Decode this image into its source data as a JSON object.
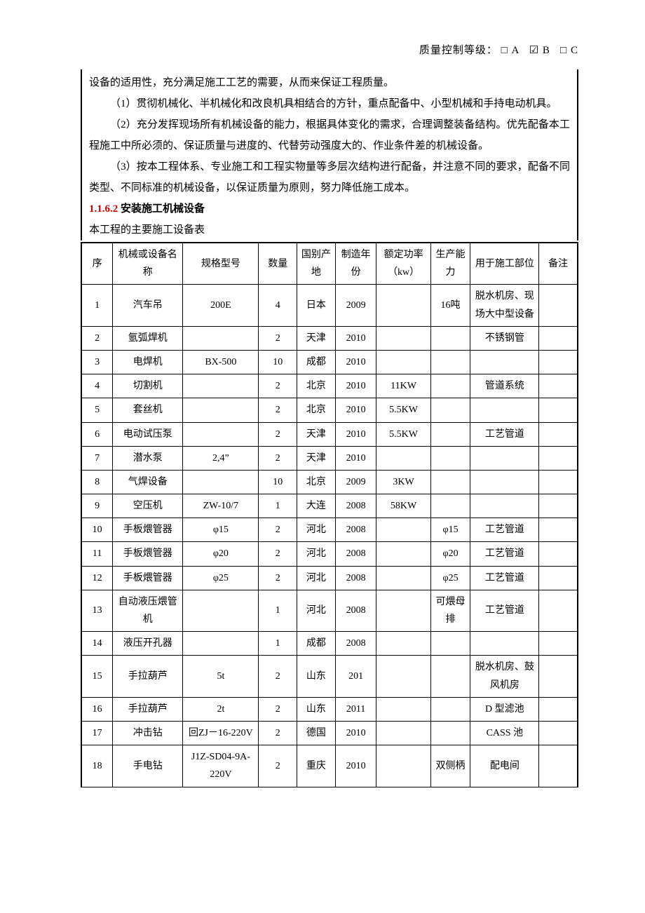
{
  "header": {
    "label": "质量控制等级：",
    "optA": "A",
    "optB": "B",
    "optC": "C",
    "unchecked": "□",
    "checked": "☑"
  },
  "text": {
    "p0": "设备的适用性，充分满足施工工艺的需要，从而来保证工程质量。",
    "p1": "（1）贯彻机械化、半机械化和改良机具相结合的方针，重点配备中、小型机械和手持电动机具。",
    "p2": "（2）充分发挥现场所有机械设备的能力，根据具体变化的需求，合理调整装备结构。优先配备本工程施工中所必须的、保证质量与进度的、代替劳动强度大的、作业条件差的机械设备。",
    "p3": "（3）按本工程体系、专业施工和工程实物量等多层次结构进行配备，并注意不同的要求，配备不同类型、不同标准的机械设备，以保证质量为原则，努力降低施工成本。",
    "sectionNum": "1.1.6.2",
    "sectionTitle": " 安装施工机械设备",
    "tableCaption": "本工程的主要施工设备表"
  },
  "table": {
    "headers": {
      "seq": "序",
      "name": "机械或设备名称",
      "spec": "规格型号",
      "qty": "数量",
      "origin": "国别产地",
      "year": "制造年份",
      "power": "额定功率（kw）",
      "cap": "生产能力",
      "use": "用于施工部位",
      "remark": "备注"
    },
    "rows": [
      {
        "seq": "1",
        "name": "汽车吊",
        "spec": "200E",
        "qty": "4",
        "origin": "日本",
        "year": "2009",
        "power": "",
        "cap": "16吨",
        "use": "脱水机房、现场大中型设备",
        "remark": ""
      },
      {
        "seq": "2",
        "name": "氩弧焊机",
        "spec": "",
        "qty": "2",
        "origin": "天津",
        "year": "2010",
        "power": "",
        "cap": "",
        "use": "不锈钢管",
        "remark": ""
      },
      {
        "seq": "3",
        "name": "电焊机",
        "spec": "BX-500",
        "qty": "10",
        "origin": "成都",
        "year": "2010",
        "power": "",
        "cap": "",
        "use": "",
        "remark": ""
      },
      {
        "seq": "4",
        "name": "切割机",
        "spec": "",
        "qty": "2",
        "origin": "北京",
        "year": "2010",
        "power": "11KW",
        "cap": "",
        "use": "管道系统",
        "remark": ""
      },
      {
        "seq": "5",
        "name": "套丝机",
        "spec": "",
        "qty": "2",
        "origin": "北京",
        "year": "2010",
        "power": "5.5KW",
        "cap": "",
        "use": "",
        "remark": ""
      },
      {
        "seq": "6",
        "name": "电动试压泵",
        "spec": "",
        "qty": "2",
        "origin": "天津",
        "year": "2010",
        "power": "5.5KW",
        "cap": "",
        "use": "工艺管道",
        "remark": ""
      },
      {
        "seq": "7",
        "name": "潜水泵",
        "spec": "2,4”",
        "qty": "2",
        "origin": "天津",
        "year": "2010",
        "power": "",
        "cap": "",
        "use": "",
        "remark": ""
      },
      {
        "seq": "8",
        "name": "气焊设备",
        "spec": "",
        "qty": "10",
        "origin": "北京",
        "year": "2009",
        "power": "3KW",
        "cap": "",
        "use": "",
        "remark": ""
      },
      {
        "seq": "9",
        "name": "空压机",
        "spec": "ZW-10/7",
        "qty": "1",
        "origin": "大连",
        "year": "2008",
        "power": "58KW",
        "cap": "",
        "use": "",
        "remark": ""
      },
      {
        "seq": "10",
        "name": "手板煨管器",
        "spec": "φ15",
        "qty": "2",
        "origin": "河北",
        "year": "2008",
        "power": "",
        "cap": "φ15",
        "use": "工艺管道",
        "remark": ""
      },
      {
        "seq": "11",
        "name": "手板煨管器",
        "spec": "φ20",
        "qty": "2",
        "origin": "河北",
        "year": "2008",
        "power": "",
        "cap": "φ20",
        "use": "工艺管道",
        "remark": ""
      },
      {
        "seq": "12",
        "name": "手板煨管器",
        "spec": "φ25",
        "qty": "2",
        "origin": "河北",
        "year": "2008",
        "power": "",
        "cap": "φ25",
        "use": "工艺管道",
        "remark": ""
      },
      {
        "seq": "13",
        "name": "自动液压煨管机",
        "spec": "",
        "qty": "1",
        "origin": "河北",
        "year": "2008",
        "power": "",
        "cap": "可煨母排",
        "use": "工艺管道",
        "remark": ""
      },
      {
        "seq": "14",
        "name": "液压开孔器",
        "spec": "",
        "qty": "1",
        "origin": "成都",
        "year": "2008",
        "power": "",
        "cap": "",
        "use": "",
        "remark": ""
      },
      {
        "seq": "15",
        "name": "手拉葫芦",
        "spec": "5t",
        "qty": "2",
        "origin": "山东",
        "year": "201",
        "power": "",
        "cap": "",
        "use": "脱水机房、鼓风机房",
        "remark": ""
      },
      {
        "seq": "16",
        "name": "手拉葫芦",
        "spec": "2t",
        "qty": "2",
        "origin": "山东",
        "year": "2011",
        "power": "",
        "cap": "",
        "use": "D 型滤池",
        "remark": ""
      },
      {
        "seq": "17",
        "name": "冲击钻",
        "spec": "回ZJ－16-220V",
        "qty": "2",
        "origin": "德国",
        "year": "2010",
        "power": "",
        "cap": "",
        "use": "CASS 池",
        "remark": ""
      },
      {
        "seq": "18",
        "name": "手电钻",
        "spec": "J1Z-SD04-9A-220V",
        "qty": "2",
        "origin": "重庆",
        "year": "2010",
        "power": "",
        "cap": "双侧柄",
        "use": "配电间",
        "remark": ""
      }
    ]
  }
}
